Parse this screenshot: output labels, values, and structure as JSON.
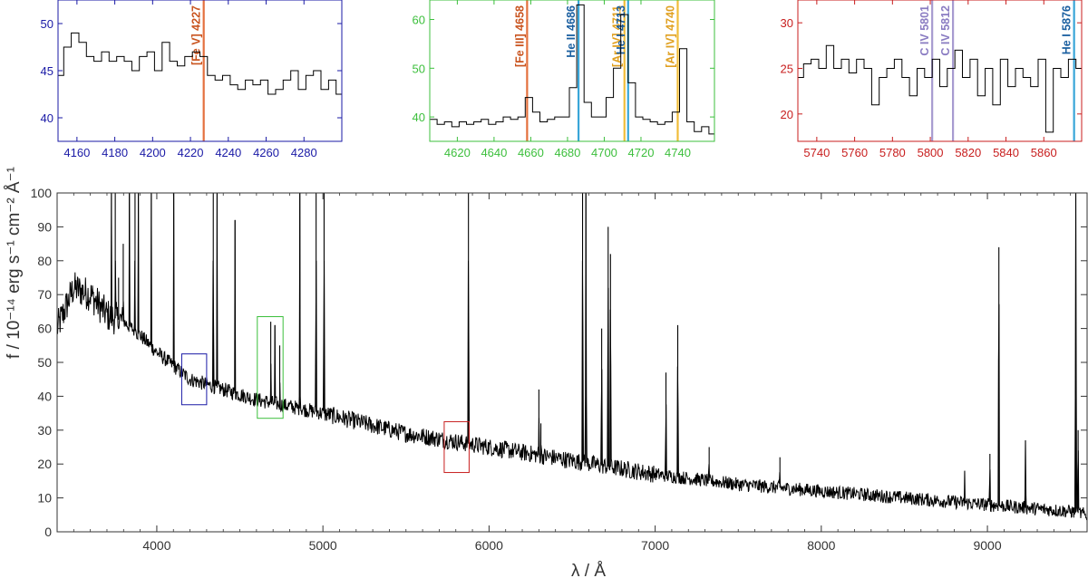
{
  "chart_data": [
    {
      "type": "line",
      "role": "inset",
      "color": "#1a1aa6",
      "xlim": [
        4150,
        4300
      ],
      "ylim": [
        37.5,
        52.5
      ],
      "xticks": [
        4160,
        4180,
        4200,
        4220,
        4240,
        4260,
        4280
      ],
      "yticks": [
        40,
        45,
        50
      ],
      "series": [
        {
          "x": [
            4151,
            4155,
            4159,
            4163,
            4167,
            4171,
            4175,
            4179,
            4183,
            4187,
            4191,
            4195,
            4199,
            4203,
            4207,
            4211,
            4215,
            4219,
            4223,
            4227,
            4231,
            4235,
            4239,
            4243,
            4247,
            4251,
            4255,
            4259,
            4263,
            4267,
            4271,
            4275,
            4279,
            4283,
            4287,
            4291,
            4295,
            4299
          ],
          "y": [
            44.5,
            47.5,
            49,
            48,
            46.5,
            46,
            47,
            46,
            46.5,
            46,
            45,
            46.5,
            47,
            45,
            48,
            46,
            45.5,
            46.5,
            47,
            46.5,
            44.5,
            44,
            44.5,
            43.5,
            43,
            44,
            43.5,
            44,
            42.5,
            43,
            44,
            45,
            43,
            44.5,
            45,
            43,
            44,
            42.5
          ]
        }
      ],
      "lines": [
        {
          "label": "[Fe V] 4227",
          "x": 4227,
          "color": "#e4703d",
          "text_color": "#c9541f"
        }
      ]
    },
    {
      "type": "line",
      "role": "inset",
      "color": "#3cbf3c",
      "xlim": [
        4605,
        4760
      ],
      "ylim": [
        35,
        64
      ],
      "xticks": [
        4620,
        4640,
        4660,
        4680,
        4700,
        4720,
        4740
      ],
      "yticks": [
        40,
        50,
        60
      ],
      "series": [
        {
          "x": [
            4607,
            4611,
            4615,
            4619,
            4623,
            4627,
            4631,
            4635,
            4639,
            4643,
            4647,
            4651,
            4655,
            4659,
            4663,
            4667,
            4671,
            4675,
            4679,
            4683,
            4687,
            4691,
            4695,
            4699,
            4703,
            4707,
            4711,
            4715,
            4719,
            4723,
            4727,
            4731,
            4735,
            4739,
            4743,
            4747,
            4751,
            4755,
            4759
          ],
          "y": [
            39.5,
            38.5,
            39,
            38,
            39,
            38.5,
            39,
            39.5,
            38.5,
            39,
            40,
            39.5,
            40,
            44,
            41,
            39,
            39.5,
            40,
            40,
            46,
            63,
            43,
            40,
            40,
            44,
            50,
            61,
            47,
            40,
            39.5,
            39,
            38.5,
            39,
            41,
            54,
            39,
            37,
            38,
            36.5
          ]
        }
      ],
      "lines": [
        {
          "label": "[Fe III] 4658",
          "x": 4658,
          "color": "#e4703d",
          "text_color": "#c9541f"
        },
        {
          "label": "He II 4686",
          "x": 4686,
          "color": "#39a6d8",
          "text_color": "#1a5fa0"
        },
        {
          "label": "[Ar IV] 4711",
          "x": 4711,
          "color": "#f0bd3a",
          "text_color": "#e0a020"
        },
        {
          "label": "He I 4713",
          "x": 4713,
          "color": "#39a6d8",
          "text_color": "#1a5fa0"
        },
        {
          "label": "[Ar IV] 4740",
          "x": 4740,
          "color": "#f0bd3a",
          "text_color": "#e0a020"
        }
      ]
    },
    {
      "type": "line",
      "role": "inset",
      "color": "#c81e1e",
      "xlim": [
        5730,
        5880
      ],
      "ylim": [
        17,
        32.5
      ],
      "xticks": [
        5740,
        5760,
        5780,
        5800,
        5820,
        5840,
        5860
      ],
      "yticks": [
        20,
        25,
        30
      ],
      "series": [
        {
          "x": [
            5731,
            5735,
            5739,
            5743,
            5747,
            5751,
            5755,
            5759,
            5763,
            5767,
            5771,
            5775,
            5779,
            5783,
            5787,
            5791,
            5795,
            5799,
            5803,
            5807,
            5811,
            5815,
            5819,
            5823,
            5827,
            5831,
            5835,
            5839,
            5843,
            5847,
            5851,
            5855,
            5859,
            5863,
            5867,
            5871,
            5875,
            5879
          ],
          "y": [
            24,
            25.5,
            26,
            25,
            27.5,
            25,
            26,
            24.5,
            26,
            25,
            21,
            24,
            25,
            26,
            24,
            22,
            25,
            24,
            26,
            23,
            25,
            27,
            24,
            26,
            22,
            25,
            21,
            26,
            23,
            25,
            24,
            23,
            26,
            18,
            25,
            24,
            26,
            25
          ]
        }
      ],
      "lines": [
        {
          "label": "C IV 5801",
          "x": 5801,
          "color": "#a79bd0",
          "text_color": "#8a7cc2"
        },
        {
          "label": "C IV 5812",
          "x": 5812,
          "color": "#a79bd0",
          "text_color": "#8a7cc2"
        },
        {
          "label": "He I 5876",
          "x": 5876,
          "color": "#39a6d8",
          "text_color": "#1a5fa0"
        }
      ]
    },
    {
      "type": "line",
      "role": "main",
      "xlabel": "λ / Å",
      "ylabel": "f / 10⁻¹⁴ erg s⁻¹ cm⁻² Å⁻¹",
      "xlim": [
        3400,
        9600
      ],
      "ylim": [
        0,
        100
      ],
      "xticks": [
        4000,
        5000,
        6000,
        7000,
        8000,
        9000
      ],
      "yticks": [
        0,
        10,
        20,
        30,
        40,
        50,
        60,
        70,
        80,
        90,
        100
      ],
      "continuum": {
        "x": [
          3400,
          3500,
          3600,
          3700,
          3800,
          3900,
          4000,
          4200,
          4400,
          4600,
          4800,
          5000,
          5500,
          6000,
          6500,
          7000,
          7500,
          8000,
          8500,
          9000,
          9500,
          9600
        ],
        "y": [
          60,
          72,
          70,
          64,
          62,
          58,
          53,
          45,
          42,
          39,
          37,
          35,
          29,
          25,
          21,
          17,
          14,
          12,
          10,
          8,
          6,
          5
        ]
      },
      "emission_lines": [
        {
          "x": 3727,
          "peak": 100
        },
        {
          "x": 3750,
          "peak": 100
        },
        {
          "x": 3770,
          "peak": 75
        },
        {
          "x": 3798,
          "peak": 85
        },
        {
          "x": 3835,
          "peak": 100
        },
        {
          "x": 3869,
          "peak": 100
        },
        {
          "x": 3889,
          "peak": 100
        },
        {
          "x": 3967,
          "peak": 100
        },
        {
          "x": 4102,
          "peak": 100
        },
        {
          "x": 4340,
          "peak": 100
        },
        {
          "x": 4363,
          "peak": 100
        },
        {
          "x": 4471,
          "peak": 92
        },
        {
          "x": 4686,
          "peak": 62
        },
        {
          "x": 4711,
          "peak": 61
        },
        {
          "x": 4740,
          "peak": 55
        },
        {
          "x": 4861,
          "peak": 100
        },
        {
          "x": 4959,
          "peak": 100
        },
        {
          "x": 5007,
          "peak": 100
        },
        {
          "x": 5876,
          "peak": 100
        },
        {
          "x": 6300,
          "peak": 42
        },
        {
          "x": 6312,
          "peak": 32
        },
        {
          "x": 6563,
          "peak": 100
        },
        {
          "x": 6583,
          "peak": 100
        },
        {
          "x": 6678,
          "peak": 60
        },
        {
          "x": 6717,
          "peak": 90
        },
        {
          "x": 6731,
          "peak": 82
        },
        {
          "x": 7065,
          "peak": 47
        },
        {
          "x": 7136,
          "peak": 61
        },
        {
          "x": 7325,
          "peak": 25
        },
        {
          "x": 7751,
          "peak": 22
        },
        {
          "x": 8863,
          "peak": 18
        },
        {
          "x": 9015,
          "peak": 23
        },
        {
          "x": 9069,
          "peak": 84
        },
        {
          "x": 9229,
          "peak": 27
        },
        {
          "x": 9532,
          "peak": 100
        },
        {
          "x": 9546,
          "peak": 30
        }
      ],
      "zoom_boxes": [
        {
          "x0": 4150,
          "x1": 4300,
          "y0": 37.5,
          "y1": 52.5,
          "color": "#1a1aa6"
        },
        {
          "x0": 4605,
          "x1": 4760,
          "y0": 33.5,
          "y1": 63.5,
          "color": "#3cbf3c"
        },
        {
          "x0": 5730,
          "x1": 5880,
          "y0": 17.5,
          "y1": 32.5,
          "color": "#c81e1e"
        }
      ]
    }
  ]
}
